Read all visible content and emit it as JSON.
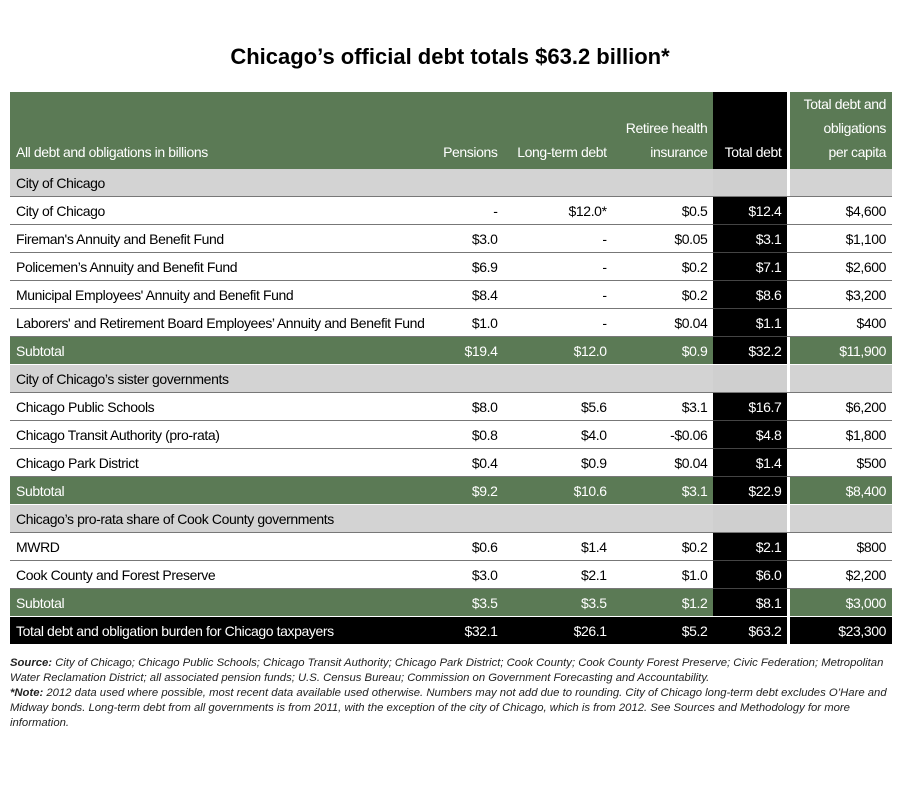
{
  "title": "Chicago’s official debt totals $63.2 billion*",
  "headers": {
    "label": "All debt and obligations in billions",
    "pensions": "Pensions",
    "long_term": "Long-term debt",
    "retiree_1": "Retiree health",
    "retiree_2": "insurance",
    "total": "Total debt",
    "per_capita_1": "Total debt and",
    "per_capita_2": "obligations",
    "per_capita_3": "per capita"
  },
  "sections": [
    {
      "name": "City of Chicago",
      "rows": [
        [
          "City of Chicago",
          "-",
          "$12.0*",
          "$0.5",
          "$12.4",
          "$4,600"
        ],
        [
          "Fireman's Annuity and Benefit Fund",
          "$3.0",
          "-",
          "$0.05",
          "$3.1",
          "$1,100"
        ],
        [
          "Policemen’s Annuity and Benefit Fund",
          "$6.9",
          "-",
          "$0.2",
          "$7.1",
          "$2,600"
        ],
        [
          "Municipal Employees' Annuity and Benefit Fund",
          "$8.4",
          "-",
          "$0.2",
          "$8.6",
          "$3,200"
        ],
        [
          "Laborers' and Retirement Board Employees’ Annuity and Benefit Fund",
          "$1.0",
          "-",
          "$0.04",
          "$1.1",
          "$400"
        ]
      ],
      "subtotal": [
        "Subtotal",
        "$19.4",
        "$12.0",
        "$0.9",
        "$32.2",
        "$11,900"
      ]
    },
    {
      "name": "City of Chicago’s sister governments",
      "rows": [
        [
          "Chicago Public Schools",
          "$8.0",
          "$5.6",
          "$3.1",
          "$16.7",
          "$6,200"
        ],
        [
          "Chicago Transit Authority (pro-rata)",
          "$0.8",
          "$4.0",
          "-$0.06",
          "$4.8",
          "$1,800"
        ],
        [
          "Chicago Park District",
          "$0.4",
          "$0.9",
          "$0.04",
          "$1.4",
          "$500"
        ]
      ],
      "subtotal": [
        "Subtotal",
        "$9.2",
        "$10.6",
        "$3.1",
        "$22.9",
        "$8,400"
      ]
    },
    {
      "name": "Chicago’s pro-rata share of Cook County governments",
      "rows": [
        [
          "MWRD",
          "$0.6",
          "$1.4",
          "$0.2",
          "$2.1",
          "$800"
        ],
        [
          "Cook County and Forest Preserve",
          "$3.0",
          "$2.1",
          "$1.0",
          "$6.0",
          "$2,200"
        ]
      ],
      "subtotal": [
        "Subtotal",
        "$3.5",
        "$3.5",
        "$1.2",
        "$8.1",
        "$3,000"
      ]
    }
  ],
  "grand_total": [
    "Total debt and obligation burden for Chicago taxpayers",
    "$32.1",
    "$26.1",
    "$5.2",
    "$63.2",
    "$23,300"
  ],
  "footnotes": {
    "source_label": "Source:",
    "source_text": " City of Chicago; Chicago Public Schools; Chicago Transit Authority; Chicago Park District; Cook County; Cook County Forest Preserve; Civic Federation; Metropolitan Water Reclamation District; all associated pension funds; U.S. Census Bureau; Commission on Government Forecasting and Accountability.",
    "note_label": "*Note:",
    "note_text": " 2012 data used where possible, most recent data available used otherwise. Numbers may not add due to rounding. City of Chicago long-term debt excludes O’Hare and Midway bonds. Long-term debt from all governments is from 2011, with the exception of the city of Chicago, which is from 2012. See Sources and Methodology for more information."
  },
  "colors": {
    "green": "#5b7a55",
    "grey": "#d3d3d3",
    "black": "#000000"
  }
}
